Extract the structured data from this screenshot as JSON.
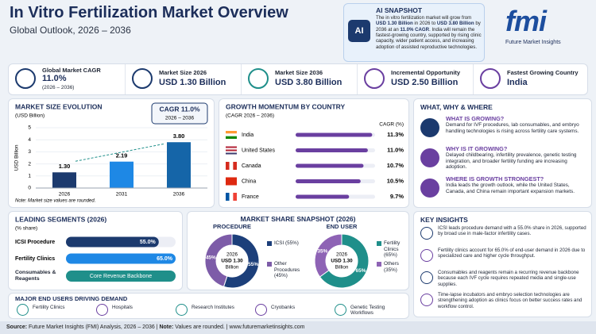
{
  "header": {
    "title": "In Vitro Fertilization Market Overview",
    "subtitle": "Global Outlook, 2026 – 2036"
  },
  "snapshot": {
    "icon": "AI",
    "title": "AI SNAPSHOT",
    "text": [
      "The in vitro fertilization market will grow from ",
      "USD 1.30 Billion",
      " in 2026 to ",
      "USD 3.80 Billion",
      " by 2036 at an ",
      "11.0% CAGR",
      ". India will remain the fastest-growing country, supported by rising clinic capacity, wider patient access, and increasing adoption of assisted reproductive technologies."
    ]
  },
  "logo": {
    "mark": "fmi",
    "name": "Future Market Insights"
  },
  "kpis": [
    {
      "label": "Global Market CAGR",
      "value": "11.0%",
      "note": "(2026 – 2036)"
    },
    {
      "label": "Market Size 2026",
      "value": "USD 1.30 Billion"
    },
    {
      "label": "Market Size 2036",
      "value": "USD 3.80 Billion"
    },
    {
      "label": "Incremental Opportunity",
      "value": "USD 2.50 Billion"
    },
    {
      "label": "Fastest Growing Country",
      "value": "India"
    }
  ],
  "chart_data": [
    {
      "type": "bar",
      "title": "MARKET SIZE EVOLUTION",
      "subtitle": "(USD Billion)",
      "y_label": "USD Billion",
      "categories": [
        "2026",
        "2031",
        "2036"
      ],
      "values": [
        1.3,
        2.19,
        3.8
      ],
      "value_labels": [
        "1.30",
        "2.19",
        "3.80"
      ],
      "colors": [
        "#1c3a6e",
        "#1e88e5",
        "#1565a8"
      ],
      "ylim": [
        0,
        5
      ],
      "yticks": [
        0,
        1,
        2,
        3,
        4,
        5
      ],
      "grid": true,
      "annotation": {
        "title": "CAGR 11.0%",
        "subtitle": "2026 – 2036"
      },
      "note": "Note: Market size values are rounded."
    },
    {
      "type": "hbar",
      "title": "GROWTH MOMENTUM BY COUNTRY",
      "subtitle": "(CAGR 2026 – 2036)",
      "value_header": "CAGR (%)",
      "categories": [
        "India",
        "United States",
        "Canada",
        "China",
        "France"
      ],
      "values": [
        11.3,
        11.0,
        10.7,
        10.5,
        9.7
      ],
      "value_labels": [
        "11.3%",
        "11.0%",
        "10.7%",
        "10.5%",
        "9.7%"
      ],
      "color": "#6a3fa0",
      "xlim": [
        6,
        11.5
      ]
    },
    {
      "type": "hbar",
      "title": "LEADING SEGMENTS (2026)",
      "subtitle": "(% share)",
      "categories": [
        "ICSI Procedure",
        "Fertility Clinics"
      ],
      "values": [
        55.0,
        65.0
      ],
      "value_labels": [
        "55.0%",
        "65.0%"
      ],
      "colors": [
        "#1c3a6e",
        "#1e88e5"
      ],
      "xlim": [
        0,
        65
      ]
    },
    {
      "type": "donut",
      "title": "PROCEDURE",
      "categories": [
        "ICSI (55%)",
        "Other Procedures (45%)"
      ],
      "values": [
        55,
        45
      ],
      "value_labels": [
        "55%",
        "45%"
      ],
      "colors": [
        "#1c3f7a",
        "#7d5ca8"
      ],
      "center": [
        "2026",
        "USD 1.30",
        "Billion"
      ]
    },
    {
      "type": "donut",
      "title": "END USER",
      "categories": [
        "Fertility Clinics (65%)",
        "Others (35%)"
      ],
      "values": [
        65,
        35
      ],
      "value_labels": [
        "65%",
        "35%"
      ],
      "colors": [
        "#1f8f8a",
        "#8e63b5"
      ],
      "center": [
        "2026",
        "USD 1.30",
        "Billion"
      ]
    }
  ],
  "market_share": {
    "title": "MARKET SHARE SNAPSHOT (2026)"
  },
  "segments_extra": {
    "label": "Consumables & Reagents",
    "text": "Core Revenue Backbone"
  },
  "what_why_where": {
    "title": "WHAT, WHY & WHERE",
    "items": [
      {
        "heading": "WHAT IS GROWING?",
        "text": "Demand for IVF procedures, lab consumables, and embryo handling technologies is rising across fertility care systems."
      },
      {
        "heading": "WHY IS IT GROWING?",
        "text": "Delayed childbearing, infertility prevalence, genetic testing integration, and broader fertility funding are increasing adoption."
      },
      {
        "heading": "WHERE IS GROWTH STRONGEST?",
        "text": "India leads the growth outlook, while the United States, Canada, and China remain important expansion markets."
      }
    ]
  },
  "key_insights": {
    "title": "KEY INSIGHTS",
    "items": [
      "ICSI leads procedure demand with a 55.0% share in 2026, supported by broad use in male-factor infertility cases.",
      "Fertility clinics account for 65.0% of end-user demand in 2026 due to specialized care and higher cycle throughput.",
      "Consumables and reagents remain a recurring revenue backbone because each IVF cycle requires repeated media and single-use supplies.",
      "Time-lapse incubators and embryo selection technologies are strengthening adoption as clinics focus on better success rates and workflow control."
    ]
  },
  "end_users": {
    "title": "MAJOR END USERS DRIVING DEMAND",
    "items": [
      "Fertility Clinics",
      "Hospitals",
      "Research Institutes",
      "Cryobanks",
      "Genetic Testing Workflows"
    ]
  },
  "footer": [
    "Source:",
    " Future Market Insights (FMI) Analysis, 2026 – 2036 | ",
    "Note:",
    " Values are rounded. | www.futuremarketinsights.com"
  ]
}
